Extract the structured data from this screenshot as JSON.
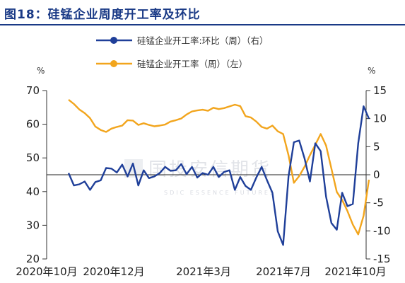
{
  "figure": {
    "title": "图18：硅锰企业周度开工率及环比",
    "watermark_text": "国投安信期货",
    "watermark_subtext": "SDIC ESSENCE FUTURES"
  },
  "colors": {
    "title": "#1a3a86",
    "blue_series": "#1f3f99",
    "orange_series": "#f2a51d",
    "axis": "#333333",
    "watermark": "#c9cdd6"
  },
  "chart_data": {
    "type": "line",
    "legend": [
      {
        "label": "硅锰企业开工率:环比（周）（右）",
        "color": "#1f3f99"
      },
      {
        "label": "硅锰企业开工率（周）（左）",
        "color": "#f2a51d"
      }
    ],
    "legend_placement": "top-center",
    "left_axis": {
      "unit": "%",
      "min": 20,
      "max": 70,
      "ticks": [
        20,
        30,
        40,
        50,
        60,
        70
      ]
    },
    "right_axis": {
      "unit": "%",
      "min": -15,
      "max": 15,
      "ticks": [
        -15,
        -10,
        -5,
        0,
        5,
        10,
        15
      ]
    },
    "x_tick_labels": [
      "2020年10月",
      "2020年12月",
      "2021年3月",
      "2021年7月",
      "2021年10月"
    ],
    "grid": false,
    "series": [
      {
        "name": "硅锰企业开工率（周）（左）",
        "axis": "left",
        "color": "#f2a51d",
        "values": [
          67.3,
          66,
          64.4,
          63.3,
          61.8,
          59.3,
          58.3,
          57.7,
          58.7,
          59.2,
          59.6,
          61.2,
          61.1,
          59.8,
          60.3,
          59.8,
          59.4,
          59.6,
          59.9,
          60.8,
          61.2,
          61.7,
          62.9,
          63.8,
          64.1,
          64.3,
          64,
          64.9,
          64.5,
          64.8,
          65.3,
          65.8,
          65.4,
          62.4,
          62,
          60.8,
          59.2,
          58.7,
          59.6,
          57.9,
          57.1,
          50.8,
          42.6,
          44.6,
          47.4,
          50.8,
          53.9,
          57.1,
          53.7,
          46.8,
          39.9,
          37.5,
          34.2,
          30.2,
          27.3,
          32.8,
          43.5
        ]
      },
      {
        "name": "硅锰企业开工率:环比（周）（右）",
        "axis": "right",
        "color": "#1f3f99",
        "values": [
          0.3,
          -1.9,
          -1.7,
          -1.2,
          -2.7,
          -1.3,
          -1,
          1.2,
          1.1,
          0.4,
          1.8,
          -0.3,
          2,
          -1.9,
          0.8,
          -0.6,
          -0.3,
          0.3,
          1.4,
          0.7,
          0.8,
          1.9,
          0.1,
          1.4,
          -0.5,
          0.3,
          0,
          1.4,
          -0.4,
          0.5,
          0.8,
          -2.7,
          -0.4,
          -2,
          -2.7,
          -0.5,
          1.4,
          -1,
          -3.2,
          -10.1,
          -12.5,
          -0.3,
          5.8,
          6.1,
          2.9,
          -1.2,
          5.6,
          4.2,
          -3.9,
          -8.6,
          -9.8,
          -3.2,
          -5.6,
          -5.2,
          5.6,
          12.2,
          10
        ]
      }
    ]
  }
}
